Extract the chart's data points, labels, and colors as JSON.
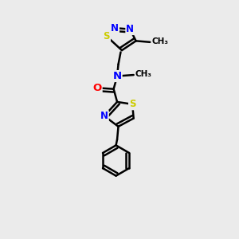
{
  "background_color": "#ebebeb",
  "atom_colors": {
    "C": "#000000",
    "N": "#0000ff",
    "S": "#cccc00",
    "O": "#ff0000",
    "H": "#000000"
  },
  "bond_color": "#000000",
  "bond_width": 1.8,
  "figsize": [
    3.0,
    3.0
  ],
  "dpi": 100
}
